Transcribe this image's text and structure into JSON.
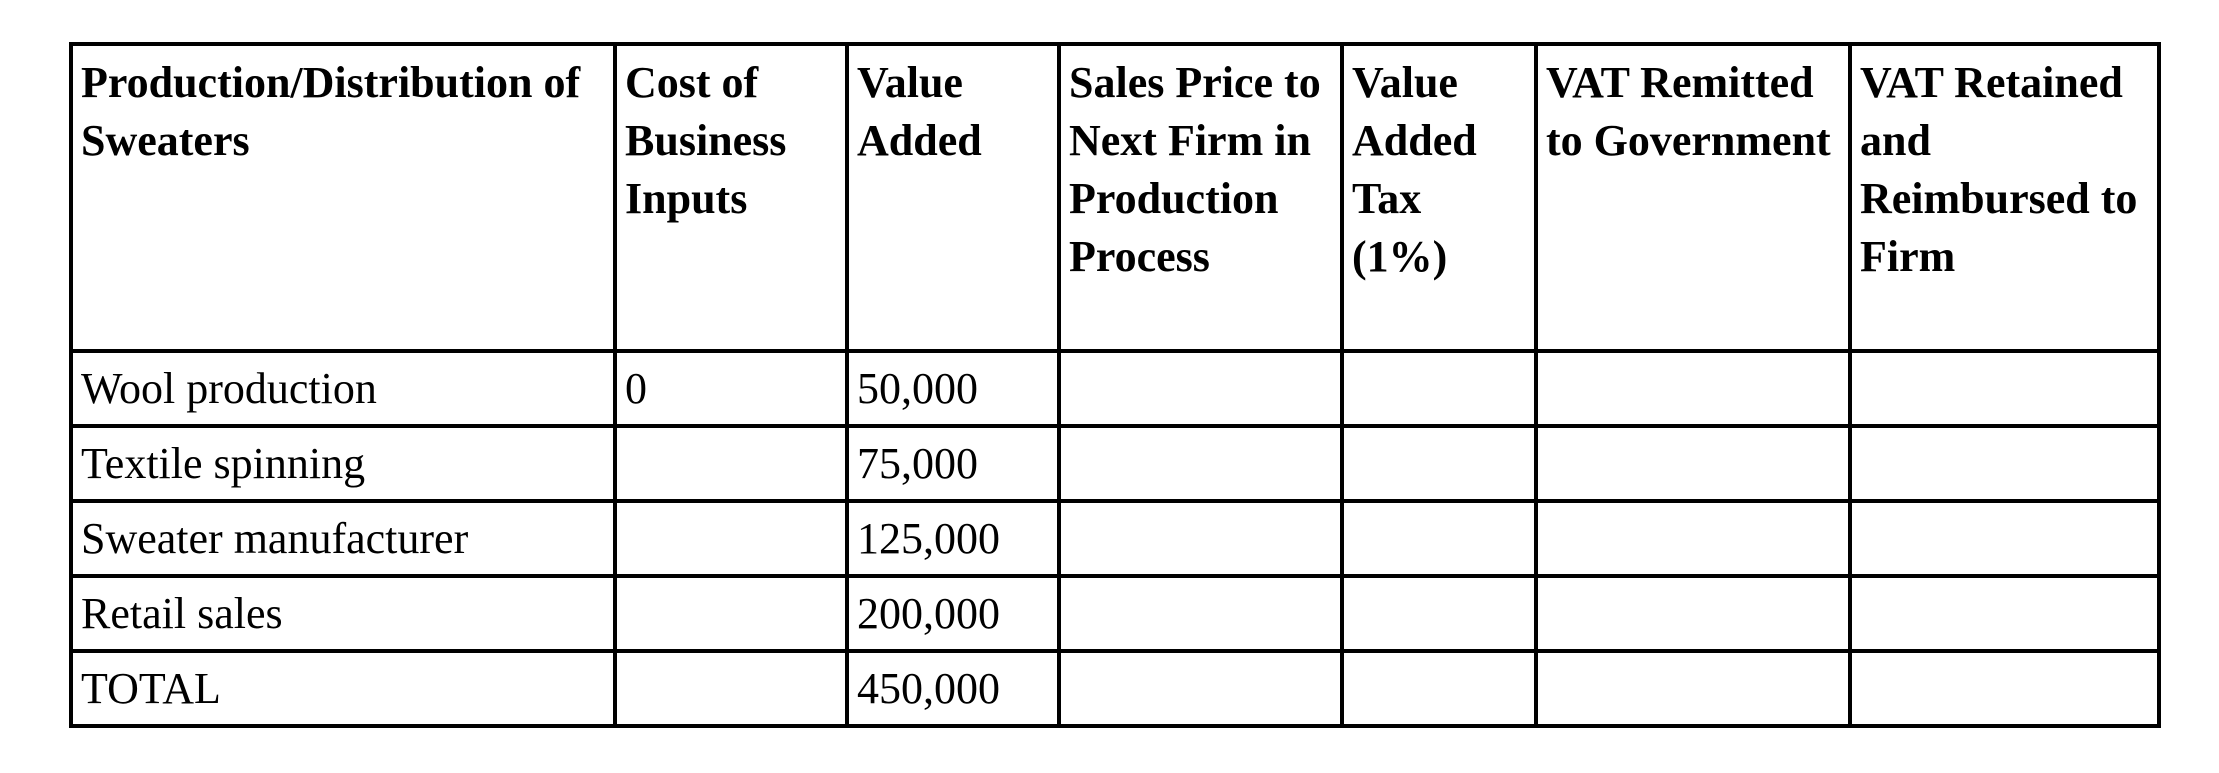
{
  "table": {
    "headers": [
      "Production/Distribution of Sweaters",
      "Cost of Business Inputs",
      "Value Added",
      "Sales Price to Next Firm in Production Process",
      "Value Added Tax (1%)",
      "VAT Remitted to Government",
      "VAT Retained and Reimbursed to Firm"
    ],
    "rows": [
      [
        "Wool production",
        "0",
        "50,000",
        "",
        "",
        "",
        ""
      ],
      [
        "Textile spinning",
        "",
        "75,000",
        "",
        "",
        "",
        ""
      ],
      [
        "Sweater manufacturer",
        "",
        "125,000",
        "",
        "",
        "",
        ""
      ],
      [
        "Retail sales",
        "",
        "200,000",
        "",
        "",
        "",
        ""
      ],
      [
        "TOTAL",
        "",
        "450,000",
        "",
        "",
        "",
        ""
      ]
    ]
  }
}
